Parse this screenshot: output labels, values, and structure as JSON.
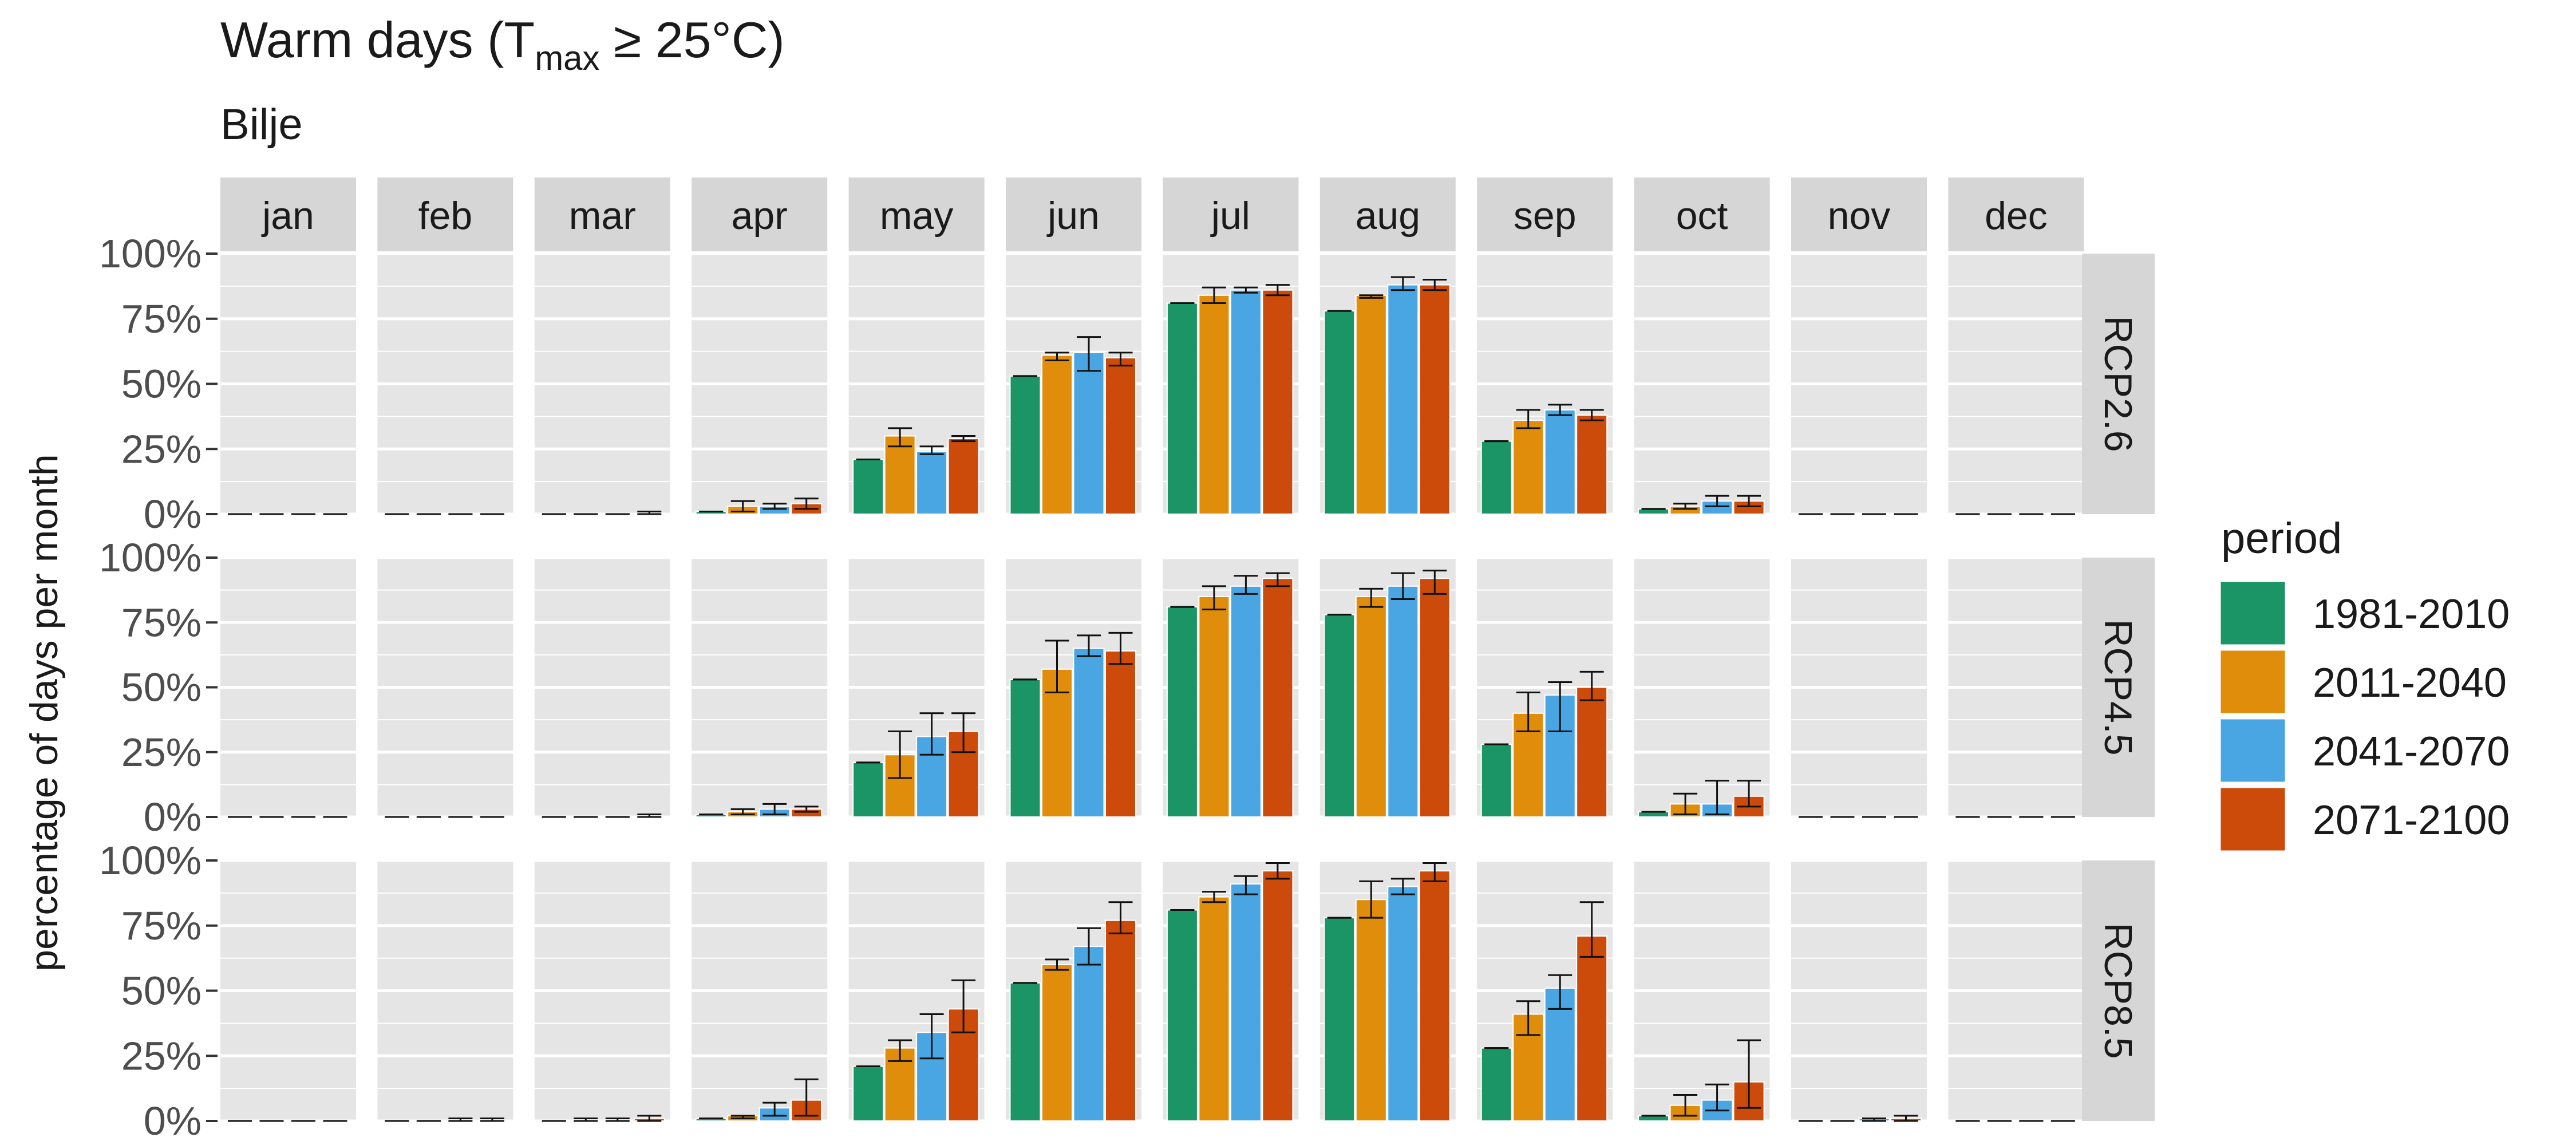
{
  "chart_data": {
    "type": "bar",
    "title_main": "Warm days (T",
    "title_sub": "max",
    "title_tail": " ≥ 25°C)",
    "subtitle": "Bilje",
    "ylabel": "percentage of days per month",
    "ylim": [
      0,
      1
    ],
    "y_ticks": [
      "0%",
      "25%",
      "50%",
      "75%",
      "100%"
    ],
    "grid": true,
    "legend_placement": "right",
    "legend_title": "period",
    "categories": [
      "jan",
      "feb",
      "mar",
      "apr",
      "may",
      "jun",
      "jul",
      "aug",
      "sep",
      "oct",
      "nov",
      "dec"
    ],
    "periods": [
      "1981-2010",
      "2011-2040",
      "2041-2070",
      "2071-2100"
    ],
    "colors": {
      "1981-2010": "#1b9466",
      "2011-2040": "#e08d0c",
      "2041-2070": "#4aa5e3",
      "2071-2100": "#cc4b0a",
      "panel_bg": "#e5e5e5",
      "strip_bg": "#d6d6d6",
      "grid": "#ffffff"
    },
    "scenarios": [
      {
        "name": "RCP2.6",
        "values": {
          "1981-2010": [
            0,
            0,
            0,
            0.01,
            0.21,
            0.53,
            0.81,
            0.78,
            0.28,
            0.02,
            0,
            0
          ],
          "2011-2040": [
            0,
            0,
            0,
            0.03,
            0.3,
            0.61,
            0.84,
            0.84,
            0.36,
            0.03,
            0,
            0
          ],
          "2041-2070": [
            0,
            0,
            0,
            0.03,
            0.24,
            0.62,
            0.86,
            0.88,
            0.4,
            0.05,
            0,
            0
          ],
          "2071-2100": [
            0,
            0,
            0,
            0.04,
            0.29,
            0.6,
            0.86,
            0.88,
            0.38,
            0.05,
            0,
            0
          ]
        },
        "errors": {
          "1981-2010": [
            [
              0,
              0
            ],
            [
              0,
              0
            ],
            [
              0,
              0
            ],
            [
              0.01,
              0.01
            ],
            [
              0.21,
              0.21
            ],
            [
              0.53,
              0.53
            ],
            [
              0.81,
              0.81
            ],
            [
              0.78,
              0.78
            ],
            [
              0.28,
              0.28
            ],
            [
              0.02,
              0.02
            ],
            [
              0,
              0
            ],
            [
              0,
              0
            ]
          ],
          "2011-2040": [
            [
              0,
              0
            ],
            [
              0,
              0
            ],
            [
              0,
              0
            ],
            [
              0.01,
              0.05
            ],
            [
              0.26,
              0.33
            ],
            [
              0.59,
              0.62
            ],
            [
              0.81,
              0.87
            ],
            [
              0.83,
              0.84
            ],
            [
              0.33,
              0.4
            ],
            [
              0.02,
              0.04
            ],
            [
              0,
              0
            ],
            [
              0,
              0
            ]
          ],
          "2041-2070": [
            [
              0,
              0
            ],
            [
              0,
              0
            ],
            [
              0,
              0
            ],
            [
              0.02,
              0.04
            ],
            [
              0.23,
              0.26
            ],
            [
              0.55,
              0.68
            ],
            [
              0.85,
              0.87
            ],
            [
              0.86,
              0.91
            ],
            [
              0.38,
              0.42
            ],
            [
              0.03,
              0.07
            ],
            [
              0,
              0
            ],
            [
              0,
              0
            ]
          ],
          "2071-2100": [
            [
              0,
              0
            ],
            [
              0,
              0
            ],
            [
              0,
              0.01
            ],
            [
              0.02,
              0.06
            ],
            [
              0.28,
              0.3
            ],
            [
              0.57,
              0.62
            ],
            [
              0.84,
              0.88
            ],
            [
              0.86,
              0.9
            ],
            [
              0.36,
              0.4
            ],
            [
              0.03,
              0.07
            ],
            [
              0,
              0
            ],
            [
              0,
              0
            ]
          ]
        }
      },
      {
        "name": "RCP4.5",
        "values": {
          "1981-2010": [
            0,
            0,
            0,
            0.01,
            0.21,
            0.53,
            0.81,
            0.78,
            0.28,
            0.02,
            0,
            0
          ],
          "2011-2040": [
            0,
            0,
            0,
            0.02,
            0.24,
            0.57,
            0.85,
            0.85,
            0.4,
            0.05,
            0,
            0
          ],
          "2041-2070": [
            0,
            0,
            0,
            0.03,
            0.31,
            0.65,
            0.89,
            0.89,
            0.47,
            0.05,
            0,
            0
          ],
          "2071-2100": [
            0,
            0,
            0,
            0.03,
            0.33,
            0.64,
            0.92,
            0.92,
            0.5,
            0.08,
            0,
            0
          ]
        },
        "errors": {
          "1981-2010": [
            [
              0,
              0
            ],
            [
              0,
              0
            ],
            [
              0,
              0
            ],
            [
              0.01,
              0.01
            ],
            [
              0.21,
              0.21
            ],
            [
              0.53,
              0.53
            ],
            [
              0.81,
              0.81
            ],
            [
              0.78,
              0.78
            ],
            [
              0.28,
              0.28
            ],
            [
              0.02,
              0.02
            ],
            [
              0,
              0
            ],
            [
              0,
              0
            ]
          ],
          "2011-2040": [
            [
              0,
              0
            ],
            [
              0,
              0
            ],
            [
              0,
              0
            ],
            [
              0.01,
              0.03
            ],
            [
              0.15,
              0.33
            ],
            [
              0.48,
              0.68
            ],
            [
              0.8,
              0.89
            ],
            [
              0.81,
              0.88
            ],
            [
              0.33,
              0.48
            ],
            [
              0.01,
              0.09
            ],
            [
              0,
              0
            ],
            [
              0,
              0
            ]
          ],
          "2041-2070": [
            [
              0,
              0
            ],
            [
              0,
              0
            ],
            [
              0,
              0
            ],
            [
              0.01,
              0.05
            ],
            [
              0.24,
              0.4
            ],
            [
              0.62,
              0.7
            ],
            [
              0.86,
              0.93
            ],
            [
              0.84,
              0.94
            ],
            [
              0.33,
              0.52
            ],
            [
              0.01,
              0.14
            ],
            [
              0,
              0
            ],
            [
              0,
              0
            ]
          ],
          "2071-2100": [
            [
              0,
              0
            ],
            [
              0,
              0
            ],
            [
              0,
              0.01
            ],
            [
              0.02,
              0.04
            ],
            [
              0.25,
              0.4
            ],
            [
              0.59,
              0.71
            ],
            [
              0.89,
              0.94
            ],
            [
              0.86,
              0.95
            ],
            [
              0.45,
              0.56
            ],
            [
              0.04,
              0.14
            ],
            [
              0,
              0
            ],
            [
              0,
              0
            ]
          ]
        }
      },
      {
        "name": "RCP8.5",
        "values": {
          "1981-2010": [
            0,
            0,
            0,
            0.01,
            0.21,
            0.53,
            0.81,
            0.78,
            0.28,
            0.02,
            0,
            0
          ],
          "2011-2040": [
            0,
            0,
            0,
            0.02,
            0.28,
            0.6,
            0.86,
            0.85,
            0.41,
            0.06,
            0,
            0
          ],
          "2041-2070": [
            0,
            0,
            0,
            0.05,
            0.34,
            0.67,
            0.91,
            0.9,
            0.51,
            0.08,
            0.01,
            0
          ],
          "2071-2100": [
            0,
            0,
            0.01,
            0.08,
            0.43,
            0.77,
            0.96,
            0.96,
            0.71,
            0.15,
            0.01,
            0
          ]
        },
        "errors": {
          "1981-2010": [
            [
              0,
              0
            ],
            [
              0,
              0
            ],
            [
              0,
              0
            ],
            [
              0.01,
              0.01
            ],
            [
              0.21,
              0.21
            ],
            [
              0.53,
              0.53
            ],
            [
              0.81,
              0.81
            ],
            [
              0.78,
              0.78
            ],
            [
              0.28,
              0.28
            ],
            [
              0.02,
              0.02
            ],
            [
              0,
              0
            ],
            [
              0,
              0
            ]
          ],
          "2011-2040": [
            [
              0,
              0
            ],
            [
              0,
              0
            ],
            [
              0,
              0.01
            ],
            [
              0.01,
              0.02
            ],
            [
              0.23,
              0.31
            ],
            [
              0.58,
              0.62
            ],
            [
              0.84,
              0.88
            ],
            [
              0.78,
              0.92
            ],
            [
              0.33,
              0.46
            ],
            [
              0.02,
              0.1
            ],
            [
              0,
              0
            ],
            [
              0,
              0
            ]
          ],
          "2041-2070": [
            [
              0,
              0
            ],
            [
              0,
              0.01
            ],
            [
              0,
              0.01
            ],
            [
              0.02,
              0.07
            ],
            [
              0.24,
              0.41
            ],
            [
              0.6,
              0.74
            ],
            [
              0.87,
              0.94
            ],
            [
              0.87,
              0.93
            ],
            [
              0.43,
              0.56
            ],
            [
              0.04,
              0.14
            ],
            [
              0,
              0.01
            ],
            [
              0,
              0
            ]
          ],
          "2071-2100": [
            [
              0,
              0
            ],
            [
              0,
              0.01
            ],
            [
              0,
              0.02
            ],
            [
              0.02,
              0.16
            ],
            [
              0.34,
              0.54
            ],
            [
              0.72,
              0.84
            ],
            [
              0.93,
              0.99
            ],
            [
              0.92,
              0.99
            ],
            [
              0.63,
              0.84
            ],
            [
              0.05,
              0.31
            ],
            [
              0,
              0.02
            ],
            [
              0,
              0
            ]
          ]
        }
      }
    ]
  }
}
